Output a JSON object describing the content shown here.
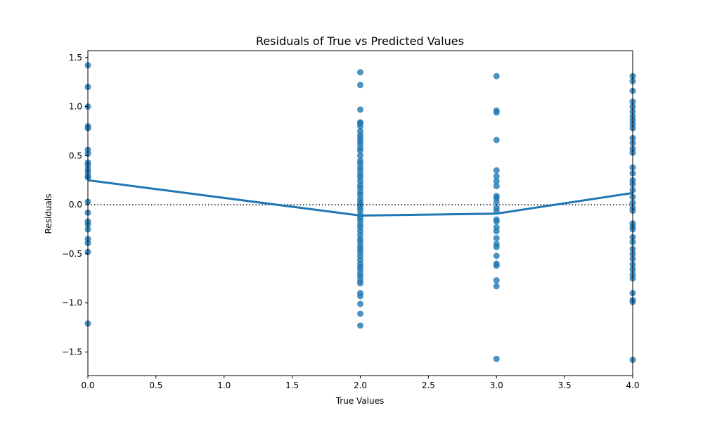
{
  "chart_data": {
    "type": "scatter",
    "title": "Residuals of True vs Predicted Values",
    "xlabel": "True Values",
    "ylabel": "Residuals",
    "xlim": [
      0.0,
      4.0
    ],
    "ylim": [
      -1.74,
      1.57
    ],
    "x_ticks": [
      "0.0",
      "0.5",
      "1.0",
      "1.5",
      "2.0",
      "2.5",
      "3.0",
      "3.5",
      "4.0"
    ],
    "y_ticks": [
      "1.5",
      "1.0",
      "0.5",
      "0.0",
      "-0.5",
      "-1.0",
      "-1.5"
    ],
    "grid": false,
    "reference_line": {
      "y": 0,
      "style": "dotted",
      "color": "#000000"
    },
    "colors": {
      "points": "#1f77b4",
      "trend": "#1f77b4"
    },
    "series": [
      {
        "kind": "scatter",
        "points": [
          [
            0,
            1.42
          ],
          [
            0,
            1.2
          ],
          [
            0,
            1.0
          ],
          [
            0,
            0.8
          ],
          [
            0,
            0.78
          ],
          [
            0,
            0.56
          ],
          [
            0,
            0.52
          ],
          [
            0,
            0.43
          ],
          [
            0,
            0.4
          ],
          [
            0,
            0.36
          ],
          [
            0,
            0.33
          ],
          [
            0,
            0.29
          ],
          [
            0,
            0.28
          ],
          [
            0,
            0.03
          ],
          [
            0,
            -0.08
          ],
          [
            0,
            -0.17
          ],
          [
            0,
            -0.2
          ],
          [
            0,
            -0.25
          ],
          [
            0,
            -0.35
          ],
          [
            0,
            -0.39
          ],
          [
            0,
            -0.48
          ],
          [
            0,
            -1.21
          ],
          [
            2,
            1.35
          ],
          [
            2,
            1.22
          ],
          [
            2,
            0.97
          ],
          [
            2,
            0.84
          ],
          [
            2,
            0.83
          ],
          [
            2,
            0.8
          ],
          [
            2,
            0.75
          ],
          [
            2,
            0.71
          ],
          [
            2,
            0.68
          ],
          [
            2,
            0.65
          ],
          [
            2,
            0.62
          ],
          [
            2,
            0.58
          ],
          [
            2,
            0.55
          ],
          [
            2,
            0.5
          ],
          [
            2,
            0.45
          ],
          [
            2,
            0.42
          ],
          [
            2,
            0.38
          ],
          [
            2,
            0.35
          ],
          [
            2,
            0.31
          ],
          [
            2,
            0.28
          ],
          [
            2,
            0.24
          ],
          [
            2,
            0.2
          ],
          [
            2,
            0.17
          ],
          [
            2,
            0.13
          ],
          [
            2,
            0.1
          ],
          [
            2,
            0.06
          ],
          [
            2,
            0.03
          ],
          [
            2,
            0.0
          ],
          [
            2,
            -0.03
          ],
          [
            2,
            -0.06
          ],
          [
            2,
            -0.1
          ],
          [
            2,
            -0.13
          ],
          [
            2,
            -0.16
          ],
          [
            2,
            -0.2
          ],
          [
            2,
            -0.23
          ],
          [
            2,
            -0.27
          ],
          [
            2,
            -0.31
          ],
          [
            2,
            -0.35
          ],
          [
            2,
            -0.38
          ],
          [
            2,
            -0.42
          ],
          [
            2,
            -0.45
          ],
          [
            2,
            -0.48
          ],
          [
            2,
            -0.52
          ],
          [
            2,
            -0.56
          ],
          [
            2,
            -0.6
          ],
          [
            2,
            -0.63
          ],
          [
            2,
            -0.66
          ],
          [
            2,
            -0.7
          ],
          [
            2,
            -0.73
          ],
          [
            2,
            -0.77
          ],
          [
            2,
            -0.8
          ],
          [
            2,
            -0.9
          ],
          [
            2,
            -0.93
          ],
          [
            2,
            -1.01
          ],
          [
            2,
            -1.11
          ],
          [
            2,
            -1.23
          ],
          [
            3,
            1.31
          ],
          [
            3,
            0.96
          ],
          [
            3,
            0.94
          ],
          [
            3,
            0.66
          ],
          [
            3,
            0.35
          ],
          [
            3,
            0.29
          ],
          [
            3,
            0.24
          ],
          [
            3,
            0.19
          ],
          [
            3,
            0.09
          ],
          [
            3,
            0.07
          ],
          [
            3,
            0.03
          ],
          [
            3,
            -0.03
          ],
          [
            3,
            -0.06
          ],
          [
            3,
            -0.15
          ],
          [
            3,
            -0.17
          ],
          [
            3,
            -0.23
          ],
          [
            3,
            -0.27
          ],
          [
            3,
            -0.34
          ],
          [
            3,
            -0.4
          ],
          [
            3,
            -0.43
          ],
          [
            3,
            -0.52
          ],
          [
            3,
            -0.6
          ],
          [
            3,
            -0.62
          ],
          [
            3,
            -0.77
          ],
          [
            3,
            -0.83
          ],
          [
            3,
            -1.57
          ],
          [
            4,
            1.31
          ],
          [
            4,
            1.26
          ],
          [
            4,
            1.16
          ],
          [
            4,
            1.05
          ],
          [
            4,
            1.0
          ],
          [
            4,
            0.95
          ],
          [
            4,
            0.9
          ],
          [
            4,
            0.86
          ],
          [
            4,
            0.82
          ],
          [
            4,
            0.78
          ],
          [
            4,
            0.68
          ],
          [
            4,
            0.63
          ],
          [
            4,
            0.57
          ],
          [
            4,
            0.53
          ],
          [
            4,
            0.38
          ],
          [
            4,
            0.32
          ],
          [
            4,
            0.25
          ],
          [
            4,
            0.21
          ],
          [
            4,
            0.15
          ],
          [
            4,
            0.08
          ],
          [
            4,
            0.02
          ],
          [
            4,
            -0.03
          ],
          [
            4,
            -0.06
          ],
          [
            4,
            -0.19
          ],
          [
            4,
            -0.22
          ],
          [
            4,
            -0.25
          ],
          [
            4,
            -0.33
          ],
          [
            4,
            -0.38
          ],
          [
            4,
            -0.45
          ],
          [
            4,
            -0.5
          ],
          [
            4,
            -0.55
          ],
          [
            4,
            -0.61
          ],
          [
            4,
            -0.66
          ],
          [
            4,
            -0.71
          ],
          [
            4,
            -0.75
          ],
          [
            4,
            -0.9
          ],
          [
            4,
            -0.97
          ],
          [
            4,
            -0.99
          ],
          [
            4,
            -1.58
          ]
        ]
      },
      {
        "kind": "line",
        "x": [
          0,
          2,
          3,
          4
        ],
        "y": [
          0.25,
          -0.11,
          -0.09,
          0.12
        ]
      }
    ]
  }
}
